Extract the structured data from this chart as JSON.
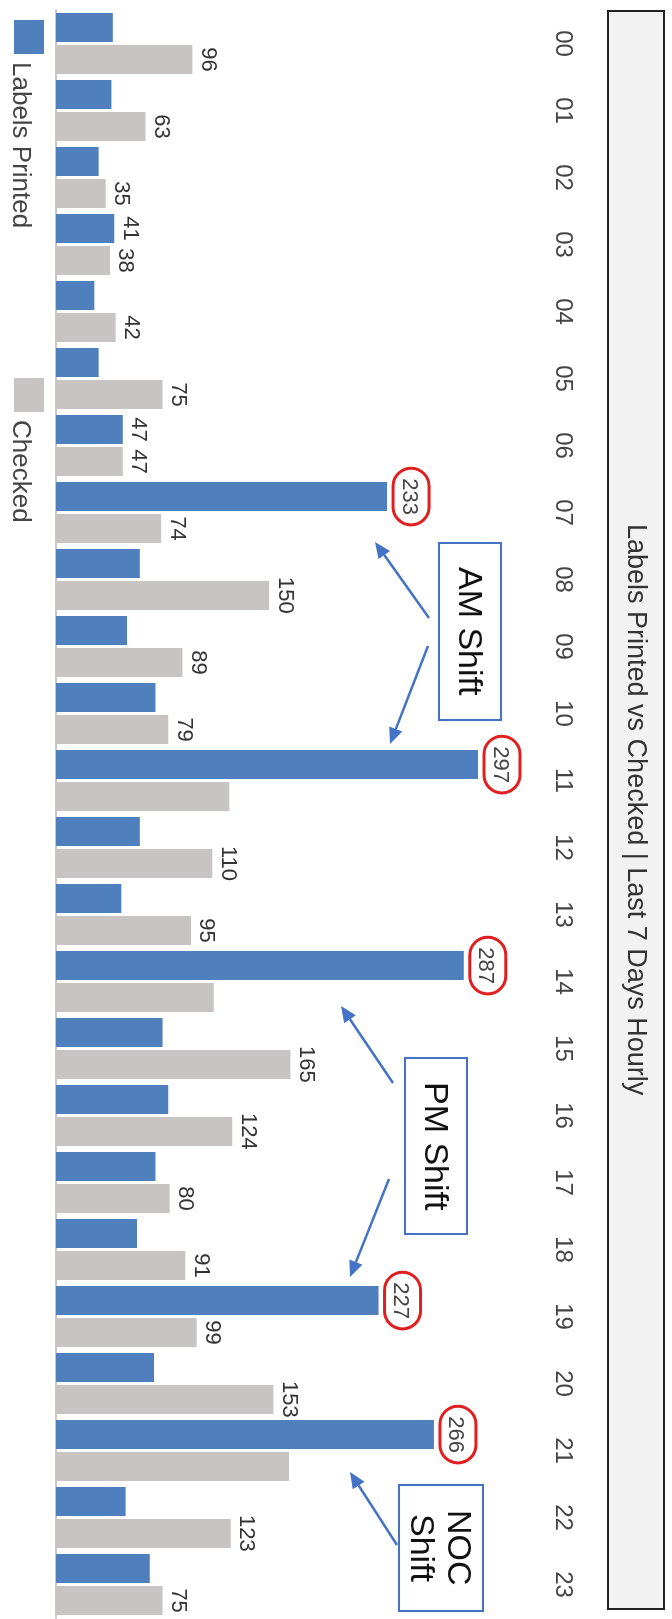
{
  "chart_data": {
    "type": "bar",
    "title": "Labels Printed vs Checked | Last 7 Days Hourly",
    "orientation": "horizontal",
    "categories": [
      "00",
      "01",
      "02",
      "03",
      "04",
      "05",
      "06",
      "07",
      "08",
      "09",
      "10",
      "11",
      "12",
      "13",
      "14",
      "15",
      "16",
      "17",
      "18",
      "19",
      "20",
      "21",
      "22",
      "23"
    ],
    "series": [
      {
        "name": "Labels Printed",
        "color": "#4f7fbd",
        "values": [
          40,
          39,
          30,
          41,
          27,
          30,
          47,
          233,
          59,
          50,
          70,
          297,
          59,
          46,
          287,
          75,
          79,
          70,
          57,
          227,
          69,
          266,
          49,
          66
        ],
        "value_labels": [
          null,
          null,
          null,
          "41",
          null,
          null,
          "47",
          "233",
          null,
          null,
          null,
          "297",
          null,
          null,
          "287",
          null,
          null,
          null,
          null,
          "227",
          null,
          "266",
          null,
          null
        ]
      },
      {
        "name": "Checked",
        "color": "#c8c4c4",
        "values": [
          96,
          63,
          35,
          38,
          42,
          75,
          47,
          74,
          150,
          89,
          79,
          122,
          110,
          95,
          111,
          165,
          124,
          80,
          91,
          99,
          153,
          164,
          123,
          75
        ],
        "value_labels": [
          "96",
          "63",
          "35",
          "38",
          "42",
          "75",
          "47",
          "74",
          "150",
          "89",
          "79",
          null,
          "110",
          "95",
          null,
          "165",
          "124",
          "80",
          "91",
          "99",
          "153",
          null,
          "123",
          "75"
        ]
      }
    ],
    "annotations": [
      "AM Shift",
      "PM Shift",
      "NOC Shift"
    ],
    "legend": "top left"
  }
}
